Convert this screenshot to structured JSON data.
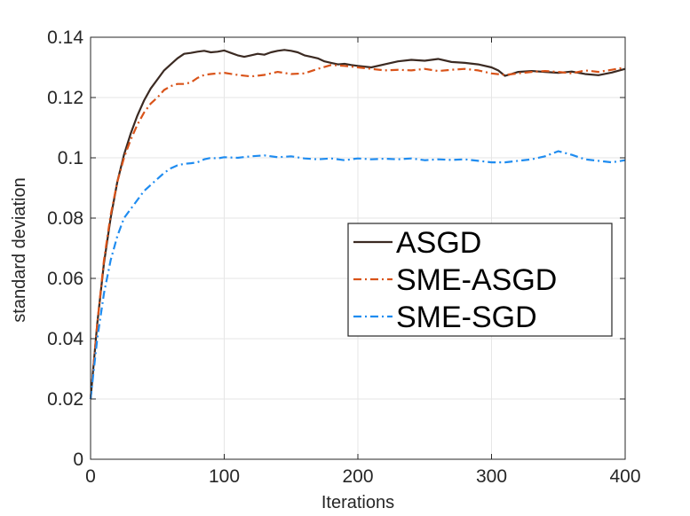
{
  "chart_data": {
    "type": "line",
    "title": "",
    "xlabel": "Iterations",
    "ylabel": "standard deviation",
    "xlim": [
      0,
      400
    ],
    "ylim": [
      0,
      0.14
    ],
    "xticks": [
      0,
      100,
      200,
      300,
      400
    ],
    "xtick_labels": [
      "0",
      "100",
      "200",
      "300",
      "400"
    ],
    "yticks": [
      0,
      0.02,
      0.04,
      0.06,
      0.08,
      0.1,
      0.12,
      0.14
    ],
    "ytick_labels": [
      "0",
      "0.02",
      "0.04",
      "0.06",
      "0.08",
      "0.1",
      "0.12",
      "0.14"
    ],
    "grid": true,
    "legend_position": "center-right",
    "series": [
      {
        "name": "ASGD",
        "color": "#3b2a22",
        "style": "solid",
        "x": [
          0,
          5,
          10,
          15,
          20,
          25,
          30,
          35,
          40,
          45,
          50,
          55,
          60,
          65,
          70,
          75,
          80,
          85,
          90,
          95,
          100,
          105,
          110,
          115,
          120,
          125,
          130,
          135,
          140,
          145,
          150,
          155,
          160,
          165,
          170,
          175,
          180,
          185,
          190,
          195,
          200,
          210,
          220,
          230,
          240,
          250,
          260,
          270,
          280,
          290,
          300,
          305,
          310,
          315,
          320,
          330,
          340,
          350,
          360,
          370,
          380,
          390,
          400
        ],
        "y": [
          0.02,
          0.045,
          0.065,
          0.08,
          0.092,
          0.101,
          0.108,
          0.114,
          0.119,
          0.123,
          0.126,
          0.129,
          0.131,
          0.133,
          0.1345,
          0.1348,
          0.1352,
          0.1355,
          0.135,
          0.1352,
          0.1356,
          0.1348,
          0.134,
          0.1335,
          0.134,
          0.1345,
          0.1342,
          0.135,
          0.1355,
          0.1358,
          0.1355,
          0.135,
          0.134,
          0.1335,
          0.133,
          0.132,
          0.1315,
          0.131,
          0.1312,
          0.1308,
          0.1305,
          0.13,
          0.131,
          0.132,
          0.1325,
          0.1322,
          0.1328,
          0.1318,
          0.1315,
          0.131,
          0.13,
          0.129,
          0.1272,
          0.1278,
          0.1285,
          0.1288,
          0.1285,
          0.1282,
          0.1286,
          0.1278,
          0.1274,
          0.1283,
          0.1295
        ]
      },
      {
        "name": "SME-ASGD",
        "color": "#d95319",
        "style": "dashdot",
        "x": [
          0,
          5,
          10,
          15,
          20,
          25,
          30,
          35,
          40,
          45,
          50,
          55,
          60,
          65,
          70,
          75,
          80,
          85,
          90,
          95,
          100,
          110,
          120,
          130,
          140,
          150,
          160,
          170,
          180,
          190,
          200,
          210,
          220,
          230,
          240,
          250,
          260,
          270,
          280,
          290,
          300,
          310,
          320,
          330,
          340,
          350,
          360,
          370,
          380,
          390,
          400
        ],
        "y": [
          0.02,
          0.045,
          0.066,
          0.081,
          0.092,
          0.1,
          0.106,
          0.111,
          0.115,
          0.118,
          0.12,
          0.1225,
          0.1238,
          0.1245,
          0.1245,
          0.125,
          0.1265,
          0.1275,
          0.1278,
          0.128,
          0.1282,
          0.1275,
          0.127,
          0.1275,
          0.1285,
          0.1278,
          0.128,
          0.1295,
          0.1308,
          0.1305,
          0.13,
          0.1295,
          0.129,
          0.1292,
          0.129,
          0.1295,
          0.1288,
          0.1292,
          0.1295,
          0.129,
          0.128,
          0.1275,
          0.128,
          0.1285,
          0.1288,
          0.1285,
          0.128,
          0.129,
          0.1285,
          0.1292,
          0.13
        ]
      },
      {
        "name": "SME-SGD",
        "color": "#1f8cf0",
        "style": "dashdot",
        "x": [
          0,
          5,
          10,
          15,
          20,
          25,
          30,
          35,
          40,
          45,
          50,
          55,
          60,
          65,
          70,
          75,
          80,
          85,
          90,
          95,
          100,
          110,
          120,
          130,
          140,
          150,
          160,
          170,
          180,
          190,
          200,
          210,
          220,
          230,
          240,
          250,
          260,
          270,
          280,
          290,
          300,
          310,
          320,
          330,
          340,
          350,
          360,
          370,
          380,
          390,
          400
        ],
        "y": [
          0.02,
          0.04,
          0.055,
          0.066,
          0.074,
          0.08,
          0.083,
          0.086,
          0.089,
          0.091,
          0.093,
          0.095,
          0.0965,
          0.0975,
          0.098,
          0.0982,
          0.0985,
          0.0995,
          0.1,
          0.0998,
          0.1002,
          0.1,
          0.1005,
          0.1008,
          0.1002,
          0.1005,
          0.0998,
          0.0995,
          0.0998,
          0.0992,
          0.0998,
          0.0995,
          0.0997,
          0.0995,
          0.0998,
          0.0992,
          0.0995,
          0.0993,
          0.0995,
          0.099,
          0.0985,
          0.0985,
          0.099,
          0.0995,
          0.1005,
          0.1022,
          0.101,
          0.0995,
          0.099,
          0.0985,
          0.0992
        ]
      }
    ]
  }
}
